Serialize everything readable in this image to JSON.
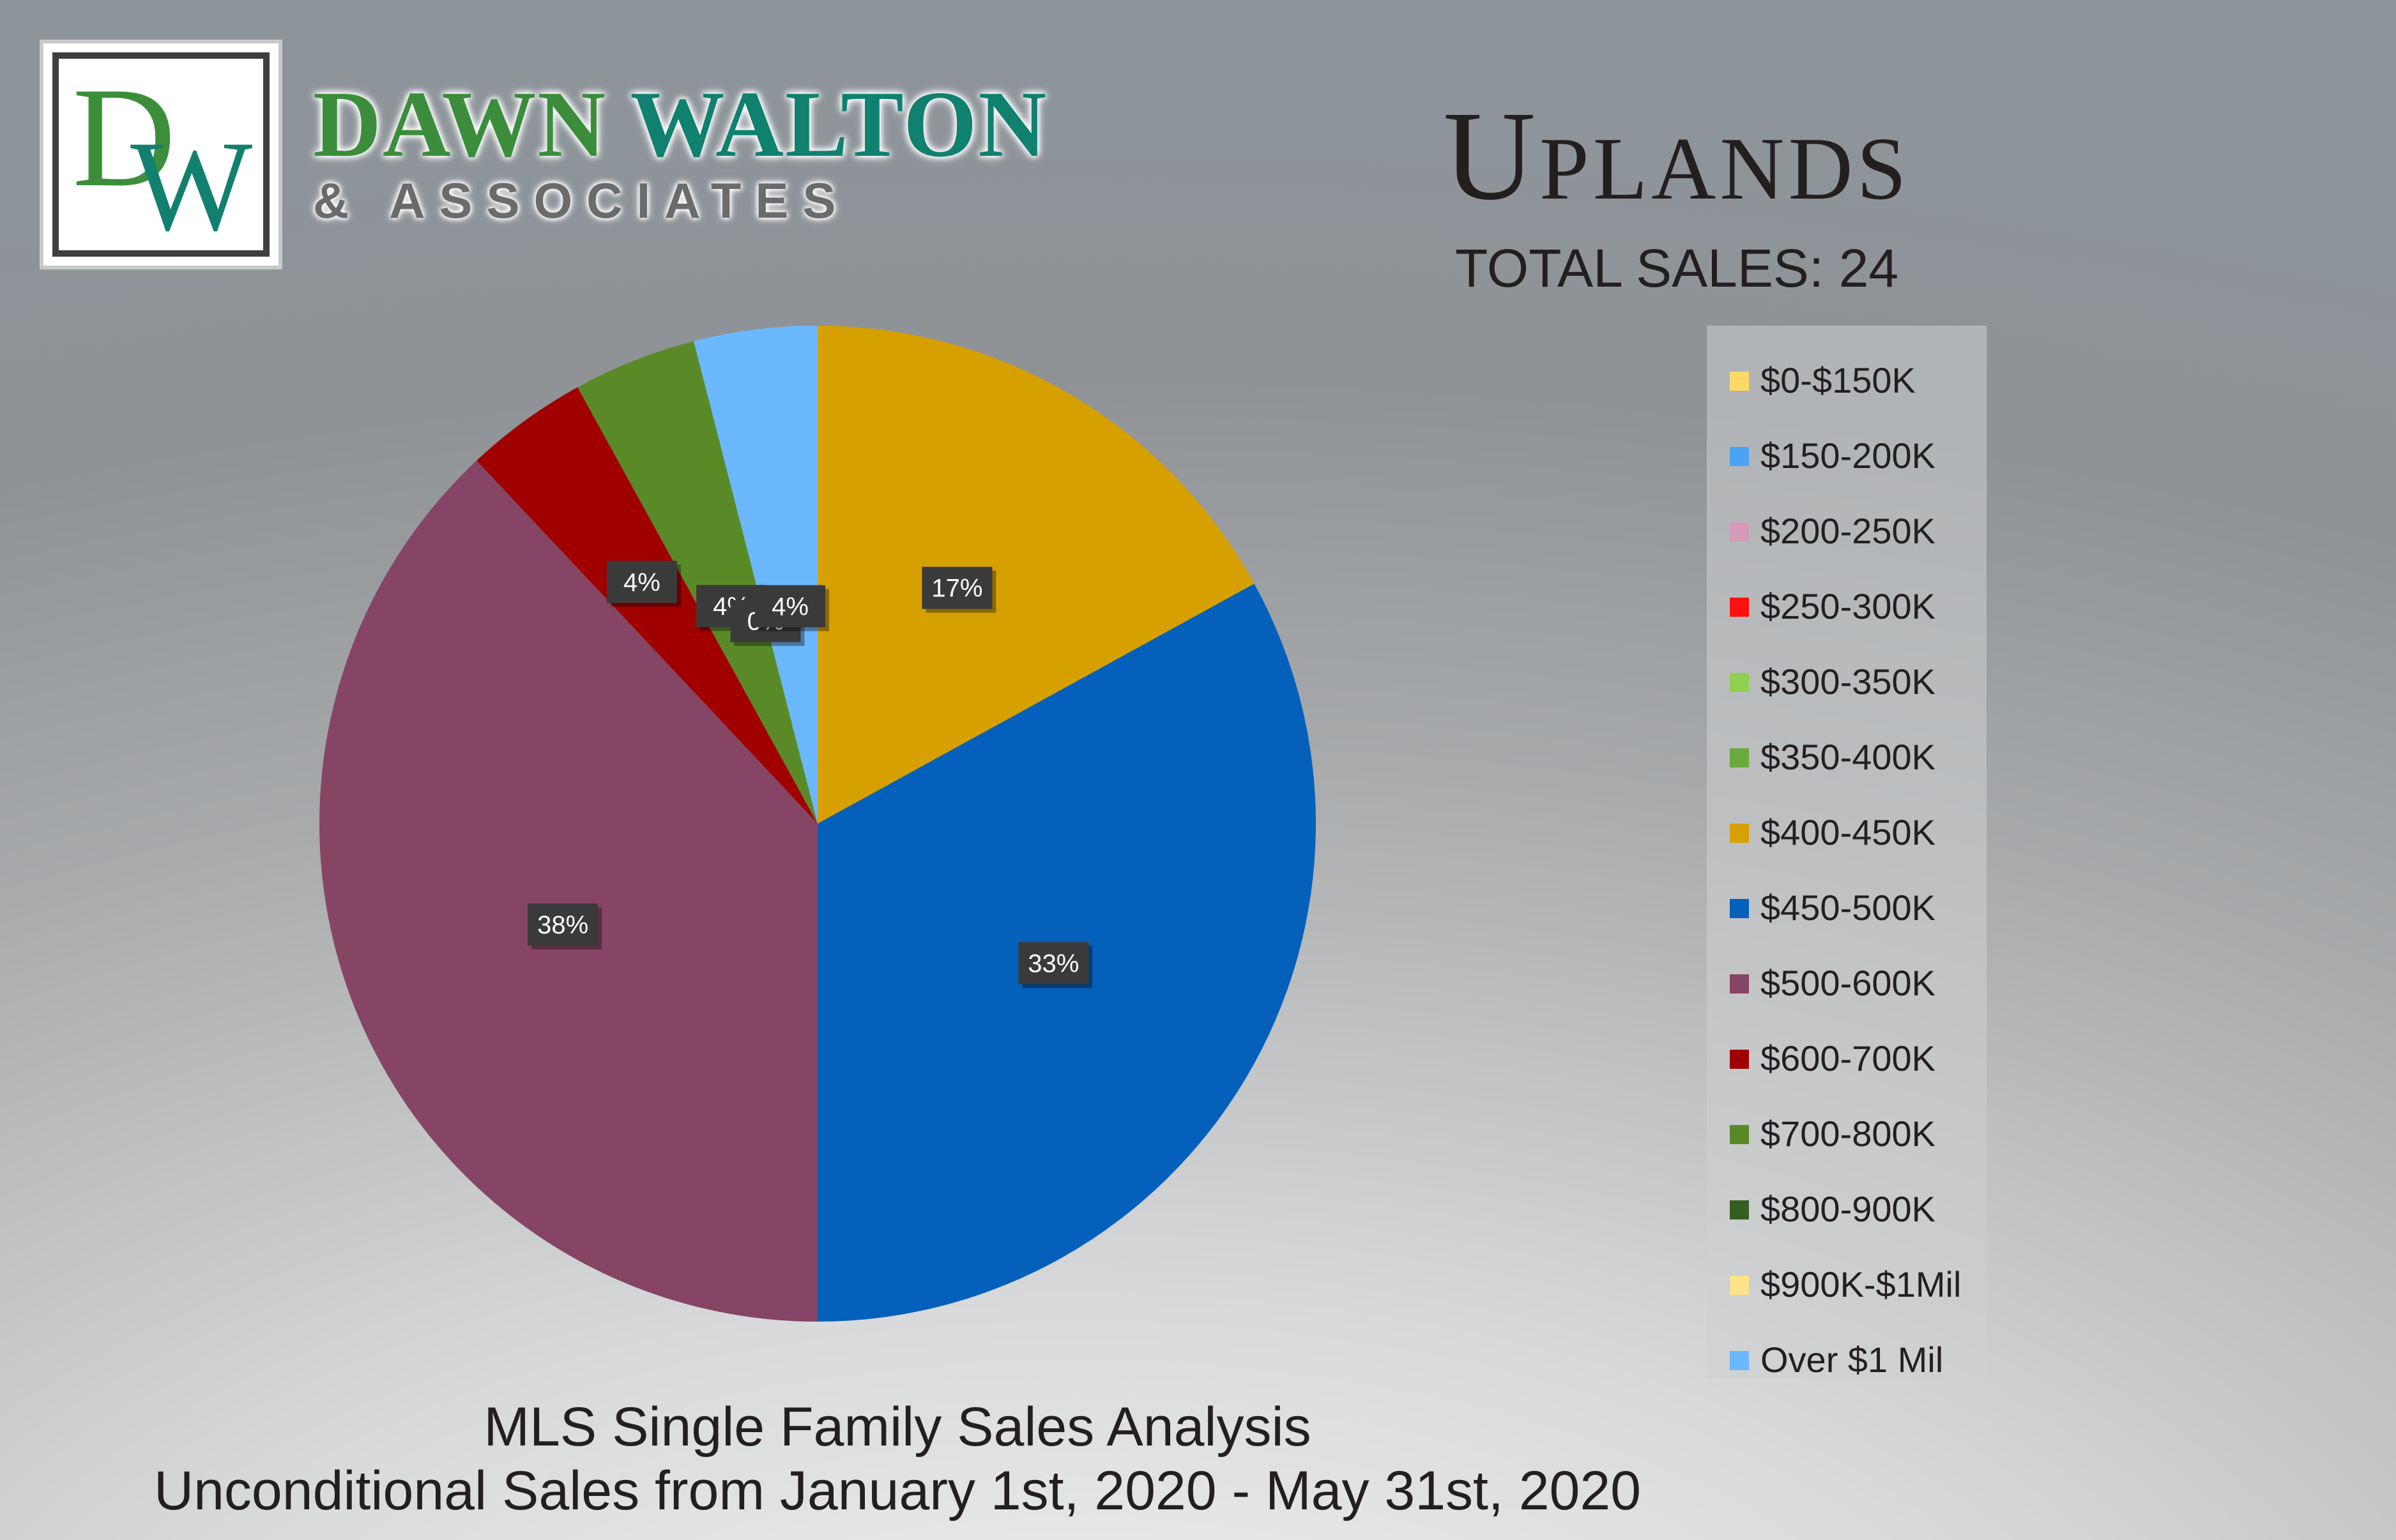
{
  "logo": {
    "monogram": "DW",
    "line1_a": "DAWN",
    "line1_b": "WALTON",
    "line2": "& ASSOCIATES"
  },
  "heading": {
    "title": "Uplands",
    "subtitle": "TOTAL SALES: 24"
  },
  "footer": {
    "line1": "MLS Single Family Sales Analysis",
    "line2": "Unconditional Sales from January 1st, 2020 - May 31st, 2020"
  },
  "legend_items": [
    {
      "label": "$0-$150K",
      "color": "#ffd966"
    },
    {
      "label": "$150-200K",
      "color": "#4aa3f5"
    },
    {
      "label": "$200-250K",
      "color": "#d49ab8"
    },
    {
      "label": "$250-300K",
      "color": "#ff1010"
    },
    {
      "label": "$300-350K",
      "color": "#8fd050"
    },
    {
      "label": "$350-400K",
      "color": "#6aaa3c"
    },
    {
      "label": "$400-450K",
      "color": "#d6a000"
    },
    {
      "label": "$450-500K",
      "color": "#0560bb"
    },
    {
      "label": "$500-600K",
      "color": "#864564"
    },
    {
      "label": "$600-700K",
      "color": "#a00000"
    },
    {
      "label": "$700-800K",
      "color": "#5a8a28"
    },
    {
      "label": "$800-900K",
      "color": "#355e22"
    },
    {
      "label": "$900K-$1Mil",
      "color": "#ffe38a"
    },
    {
      "label": "Over $1 Mil",
      "color": "#6cb8ff"
    }
  ],
  "chart_data": {
    "type": "pie",
    "title": "Uplands",
    "subtitle": "TOTAL SALES: 24",
    "legend_position": "right",
    "slices": [
      {
        "label": "$400-450K",
        "value": 17,
        "color": "#d6a000",
        "data_label": "17%"
      },
      {
        "label": "$450-500K",
        "value": 33,
        "color": "#0560bb",
        "data_label": "33%"
      },
      {
        "label": "$500-600K",
        "value": 38,
        "color": "#864564",
        "data_label": "38%"
      },
      {
        "label": "$600-700K",
        "value": 4,
        "color": "#a00000",
        "data_label": "4%"
      },
      {
        "label": "$700-800K",
        "value": 4,
        "color": "#5a8a28",
        "data_label": "4%"
      },
      {
        "label": "$800-900K",
        "value": 0,
        "color": "#355e22",
        "data_label": "0%"
      },
      {
        "label": "Over $1 Mil",
        "value": 4,
        "color": "#6cb8ff",
        "data_label": "4%"
      }
    ]
  }
}
